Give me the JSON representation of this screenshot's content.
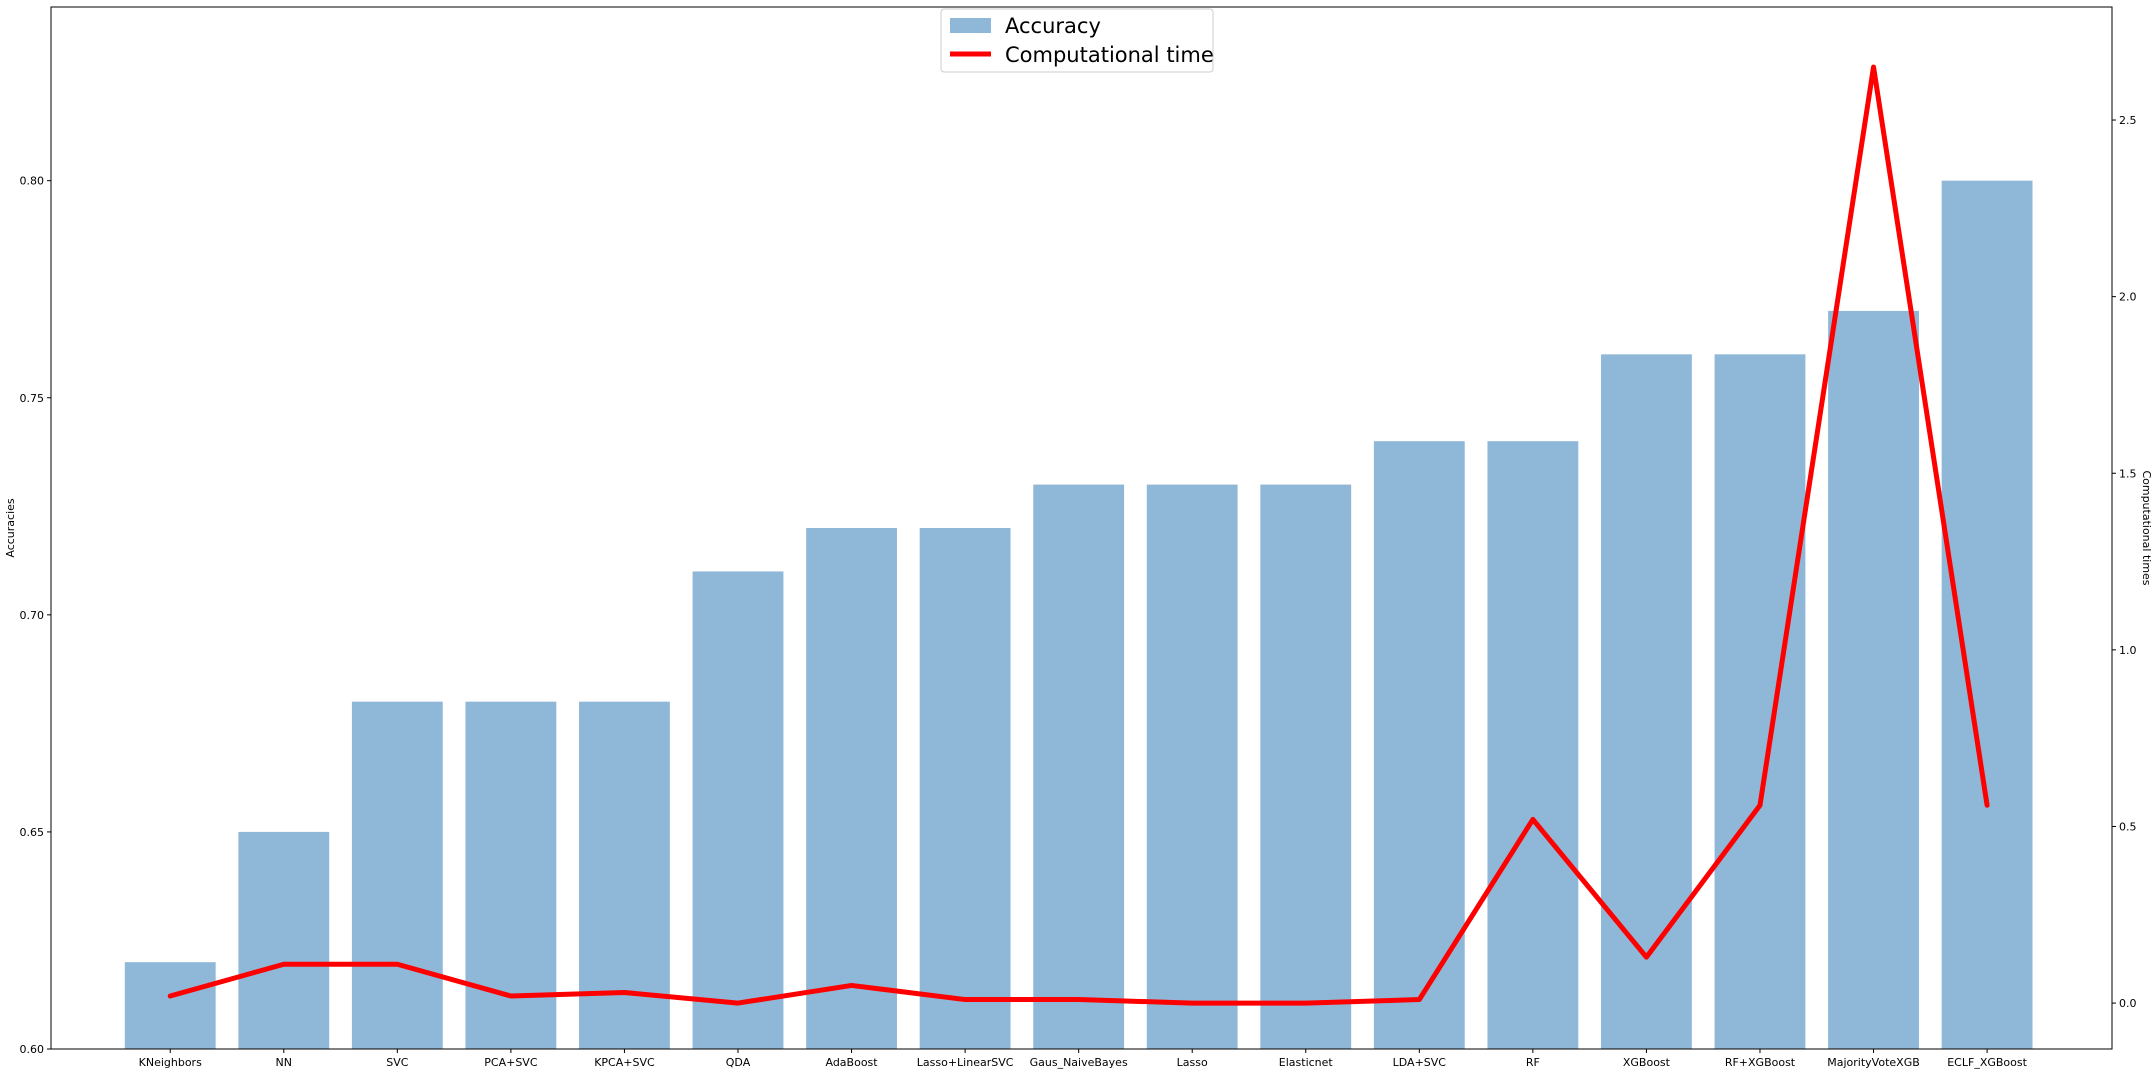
{
  "chart_data": {
    "type": "bar",
    "categories": [
      "KNeighbors",
      "NN",
      "SVC",
      "PCA+SVC",
      "KPCA+SVC",
      "QDA",
      "AdaBoost",
      "Lasso+LinearSVC",
      "Gaus_NaiveBayes",
      "Lasso",
      "Elasticnet",
      "LDA+SVC",
      "RF",
      "XGBoost",
      "RF+XGBoost",
      "MajorityVoteXGB",
      "ECLF_XGBoost"
    ],
    "series": [
      {
        "name": "Accuracy",
        "type": "bar",
        "axis": "left",
        "color": "#8fb8d8",
        "values": [
          0.62,
          0.65,
          0.68,
          0.68,
          0.68,
          0.71,
          0.72,
          0.72,
          0.73,
          0.73,
          0.73,
          0.74,
          0.74,
          0.76,
          0.76,
          0.77,
          0.8
        ]
      },
      {
        "name": "Computational time",
        "type": "line",
        "axis": "right",
        "color": "#ff0000",
        "values": [
          0.02,
          0.11,
          0.11,
          0.02,
          0.03,
          0.0,
          0.05,
          0.01,
          0.01,
          0.0,
          0.0,
          0.01,
          0.52,
          0.13,
          0.56,
          2.65,
          0.56
        ]
      }
    ],
    "ylabel": "Accuracies",
    "ylabel_right": "Computational times",
    "ylim": [
      0.6,
      0.84
    ],
    "ylim_right": [
      -0.13,
      2.82
    ],
    "yticks": [
      "0.60",
      "0.65",
      "0.70",
      "0.75",
      "0.80"
    ],
    "yticks_right": [
      "0.0",
      "0.5",
      "1.0",
      "1.5",
      "2.0",
      "2.5"
    ],
    "legend_position": "top-center",
    "grid": false
  }
}
